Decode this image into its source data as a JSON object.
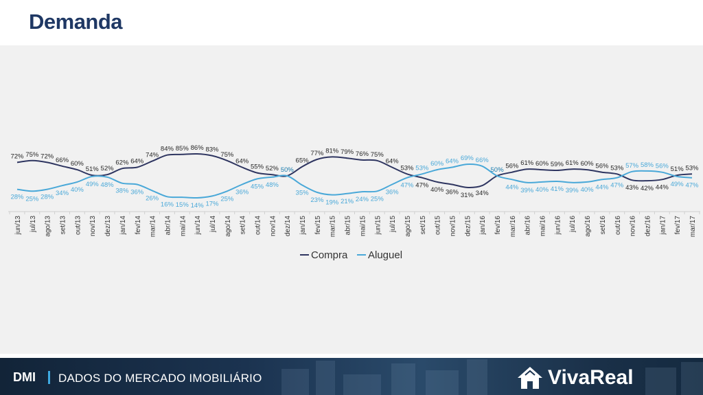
{
  "page": {
    "title": "Demanda",
    "footer": {
      "tag": "DMI",
      "subtitle": "DADOS DO MERCADO IMOBILIÁRIO",
      "brand": "VivaReal"
    }
  },
  "colors": {
    "compra": "#2e3560",
    "aluguel": "#49a8d8",
    "title": "#1f3864"
  },
  "chart_data": {
    "type": "line",
    "title": "",
    "xlabel": "",
    "ylabel": "",
    "ylim": [
      0,
      100
    ],
    "grid": false,
    "legend_position": "bottom",
    "categories": [
      "jun/13",
      "jul/13",
      "ago/13",
      "set/13",
      "out/13",
      "nov/13",
      "dez/13",
      "jan/14",
      "fev/14",
      "mar/14",
      "abr/14",
      "mai/14",
      "jun/14",
      "jul/14",
      "ago/14",
      "set/14",
      "out/14",
      "nov/14",
      "dez/14",
      "jan/15",
      "fev/15",
      "mar/15",
      "abr/15",
      "mai/15",
      "jun/15",
      "jul/15",
      "ago/15",
      "set/15",
      "out/15",
      "nov/15",
      "dez/15",
      "jan/16",
      "fev/16",
      "mar/16",
      "abr/16",
      "mai/16",
      "jun/16",
      "jul/16",
      "ago/16",
      "set/16",
      "out/16",
      "nov/16",
      "dez/16",
      "jan/17",
      "fev/17",
      "mar/17"
    ],
    "series": [
      {
        "name": "Compra",
        "values": [
          72,
          75,
          72,
          66,
          60,
          51,
          52,
          62,
          64,
          74,
          84,
          85,
          86,
          83,
          75,
          64,
          55,
          52,
          50,
          65,
          77,
          81,
          79,
          76,
          75,
          64,
          53,
          47,
          40,
          36,
          31,
          34,
          50,
          56,
          61,
          60,
          59,
          61,
          60,
          56,
          53,
          43,
          42,
          44,
          51,
          53
        ],
        "labels": [
          "72%",
          "75%",
          "72%",
          "66%",
          "60%",
          "51%",
          "52%",
          "62%",
          "64%",
          "74%",
          "84%",
          "85%",
          "86%",
          "83%",
          "75%",
          "64%",
          "55%",
          "52%",
          "50%",
          "65%",
          "77%",
          "81%",
          "79%",
          "76%",
          "75%",
          "64%",
          "53%",
          "47%",
          "40%",
          "36%",
          "31%",
          "34%",
          "50%",
          "56%",
          "61%",
          "60%",
          "59%",
          "61%",
          "60%",
          "56%",
          "53%",
          "43%",
          "42%",
          "44%",
          "51%",
          "53%"
        ]
      },
      {
        "name": "Aluguel",
        "values": [
          28,
          25,
          28,
          34,
          40,
          49,
          48,
          38,
          36,
          26,
          16,
          15,
          14,
          17,
          25,
          36,
          45,
          48,
          50,
          35,
          23,
          19,
          21,
          24,
          25,
          36,
          47,
          53,
          60,
          64,
          69,
          66,
          50,
          44,
          39,
          40,
          41,
          39,
          40,
          44,
          47,
          57,
          58,
          56,
          49,
          47
        ],
        "labels": [
          "28%",
          "25%",
          "28%",
          "34%",
          "40%",
          "49%",
          "48%",
          "38%",
          "36%",
          "26%",
          "16%",
          "15%",
          "14%",
          "17%",
          "25%",
          "36%",
          "45%",
          "48%",
          "50%",
          "35%",
          "23%",
          "19%",
          "21%",
          "24%",
          "25%",
          "36%",
          "47%",
          "53%",
          "60%",
          "64%",
          "69%",
          "66%",
          "50%",
          "44%",
          "39%",
          "40%",
          "41%",
          "39%",
          "40%",
          "44%",
          "47%",
          "57%",
          "58%",
          "56%",
          "49%",
          "47%"
        ]
      }
    ]
  }
}
